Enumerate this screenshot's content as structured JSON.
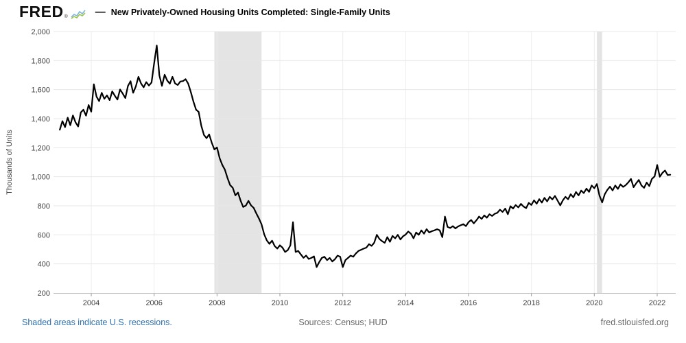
{
  "header": {
    "logo_text": "FRED",
    "logo_registered": "®",
    "legend_dash": "—",
    "series_title": "New Privately-Owned Housing Units Completed: Single-Family Units"
  },
  "footer": {
    "recession_note": "Shaded areas indicate U.S. recessions.",
    "sources": "Sources: Census; HUD",
    "site": "fred.stlouisfed.org"
  },
  "colors": {
    "line": "#000000",
    "recession_band": "#e4e4e4",
    "h_gridline": "#e7e7e7",
    "v_gridline": "#ededed",
    "axis_line": "#b5b5b5",
    "tick_mark": "#999999",
    "tick_text": "#404040",
    "link_blue": "#2d6fad",
    "footer_gray": "#666666",
    "logo_icon_blue": "#7ab7d9",
    "logo_icon_green": "#9fc54d"
  },
  "chart_data": {
    "type": "line",
    "title": "New Privately-Owned Housing Units Completed: Single-Family Units",
    "ylabel": "Thousands of Units",
    "xlabel": "",
    "frequency": "monthly",
    "x_start": "2003-01",
    "x_end": "2022-06",
    "ylim": [
      200,
      2000
    ],
    "y_ticks": [
      200,
      400,
      600,
      800,
      1000,
      1200,
      1400,
      1600,
      1800,
      2000
    ],
    "y_tick_labels": [
      "200",
      "400",
      "600",
      "800",
      "1,000",
      "1,200",
      "1,400",
      "1,600",
      "1,800",
      "2,000"
    ],
    "x_ticks": [
      2004,
      2006,
      2008,
      2010,
      2012,
      2014,
      2016,
      2018,
      2020,
      2022
    ],
    "x_tick_labels": [
      "2004",
      "2006",
      "2008",
      "2010",
      "2012",
      "2014",
      "2016",
      "2018",
      "2020",
      "2022"
    ],
    "grid": true,
    "legend_position": "top",
    "recessions": [
      {
        "start": "2007-12",
        "end": "2009-06"
      },
      {
        "start": "2020-02",
        "end": "2020-04"
      }
    ],
    "values": [
      1324,
      1383,
      1342,
      1407,
      1355,
      1422,
      1375,
      1346,
      1443,
      1462,
      1421,
      1494,
      1448,
      1637,
      1552,
      1521,
      1578,
      1537,
      1560,
      1528,
      1588,
      1558,
      1532,
      1601,
      1573,
      1542,
      1625,
      1658,
      1578,
      1622,
      1688,
      1643,
      1616,
      1652,
      1628,
      1649,
      1782,
      1904,
      1698,
      1626,
      1703,
      1662,
      1641,
      1688,
      1643,
      1632,
      1656,
      1659,
      1672,
      1642,
      1583,
      1517,
      1462,
      1447,
      1352,
      1288,
      1266,
      1292,
      1234,
      1188,
      1202,
      1128,
      1082,
      1049,
      992,
      943,
      924,
      872,
      891,
      836,
      792,
      802,
      834,
      803,
      786,
      748,
      712,
      672,
      604,
      562,
      538,
      560,
      523,
      505,
      528,
      512,
      482,
      495,
      528,
      687,
      482,
      489,
      465,
      442,
      457,
      434,
      441,
      452,
      378,
      412,
      441,
      449,
      426,
      441,
      417,
      432,
      457,
      449,
      378,
      426,
      441,
      457,
      449,
      472,
      489,
      497,
      505,
      512,
      536,
      524,
      546,
      600,
      572,
      556,
      545,
      584,
      552,
      592,
      576,
      600,
      568,
      590,
      602,
      623,
      608,
      576,
      616,
      600,
      631,
      608,
      639,
      616,
      625,
      631,
      639,
      631,
      584,
      726,
      655,
      647,
      660,
      644,
      658,
      666,
      674,
      660,
      687,
      702,
      679,
      700,
      726,
      710,
      734,
      718,
      742,
      730,
      745,
      752,
      773,
      758,
      781,
      742,
      797,
      781,
      805,
      789,
      813,
      795,
      784,
      820,
      806,
      838,
      814,
      846,
      822,
      855,
      830,
      862,
      844,
      868,
      836,
      803,
      838,
      862,
      845,
      880,
      858,
      895,
      872,
      905,
      888,
      918,
      896,
      940,
      921,
      950,
      870,
      823,
      880,
      910,
      932,
      906,
      940,
      916,
      948,
      930,
      942,
      962,
      985,
      928,
      955,
      978,
      940,
      924,
      960,
      936,
      985,
      1002,
      1081,
      1000,
      1027,
      1043,
      1012,
      1014
    ]
  }
}
